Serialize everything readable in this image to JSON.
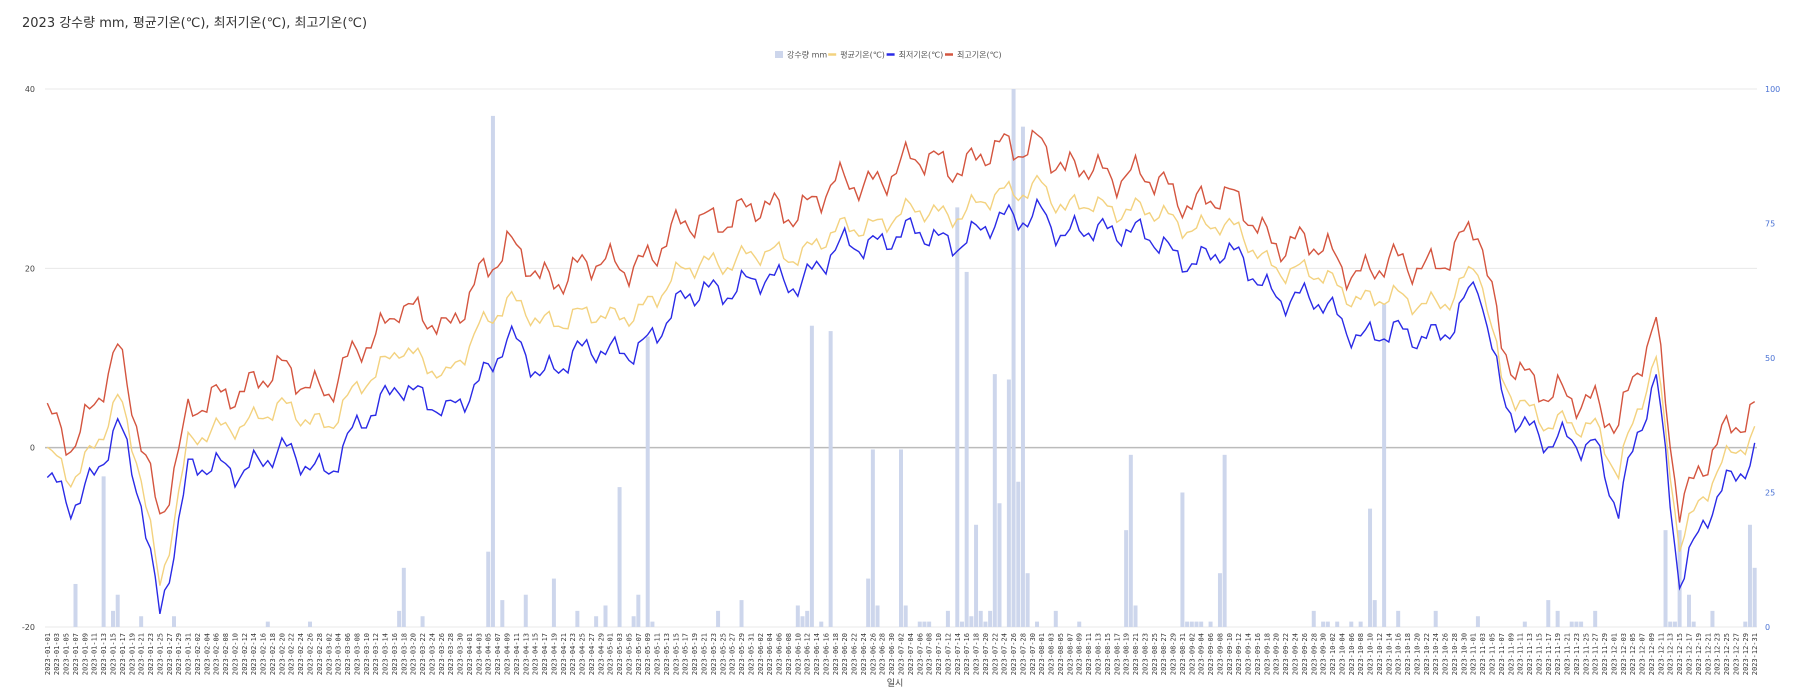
{
  "chart_data": {
    "type": "line",
    "title": "2023 강수량 mm, 평균기온(℃), 최저기온(℃), 최고기온(℃)",
    "xlabel": "일시",
    "ylabel": "",
    "y2label": "",
    "ylim": [
      -20,
      40
    ],
    "y2lim": [
      0,
      100
    ],
    "yticks": [
      -20,
      0,
      20,
      40
    ],
    "y2ticks": [
      0,
      25,
      50,
      75,
      100
    ],
    "grid": true,
    "legend_position": "top-center",
    "start_date": "2023-01-01",
    "end_date": "2023-12-31",
    "x_tick_step_days": 2,
    "legend": [
      {
        "name": "강수량 mm",
        "kind": "bar",
        "color": "#cdd6ec"
      },
      {
        "name": "평균기온(℃)",
        "kind": "line",
        "color": "#f3d27f"
      },
      {
        "name": "최저기온(℃)",
        "kind": "line",
        "color": "#2a2ae6"
      },
      {
        "name": "최고기온(℃)",
        "kind": "line",
        "color": "#d4553f"
      }
    ],
    "temperature_anchors": {
      "doy": [
        0,
        5,
        11,
        15,
        20,
        24,
        30,
        40,
        50,
        60,
        70,
        75,
        85,
        92,
        98,
        105,
        112,
        120,
        130,
        140,
        150,
        160,
        170,
        180,
        190,
        197,
        205,
        212,
        217,
        222,
        230,
        240,
        250,
        260,
        270,
        280,
        290,
        300,
        305,
        310,
        320,
        330,
        335,
        343,
        348,
        354,
        360,
        364
      ],
      "min": [
        -4,
        -6,
        -2,
        2,
        -6,
        -18,
        -3,
        -2,
        -1,
        -2,
        4,
        8,
        3,
        8,
        12,
        8,
        11,
        10,
        13,
        18,
        18,
        19,
        22,
        24,
        23,
        24,
        25,
        27,
        23,
        24,
        25,
        21,
        22,
        18,
        16,
        13,
        12,
        14,
        18,
        6,
        0,
        1,
        -7,
        8,
        -14,
        -8,
        -3,
        0
      ],
      "avg": [
        -1,
        -3,
        1,
        5,
        -3,
        -15,
        0,
        3,
        4,
        3,
        8,
        12,
        7,
        14,
        16,
        14,
        15,
        14,
        17,
        21,
        21,
        22,
        24,
        26,
        26,
        27,
        28,
        30,
        26,
        27,
        27,
        25,
        25,
        21,
        19,
        17,
        16,
        17,
        20,
        8,
        2,
        3,
        -3,
        10,
        -10,
        -5,
        0,
        2
      ],
      "max": [
        3,
        1,
        6,
        10,
        1,
        -7,
        3,
        7,
        8,
        7,
        12,
        17,
        12,
        20,
        22,
        19,
        20,
        20,
        22,
        26,
        26,
        27,
        29,
        31,
        32,
        32,
        33,
        35,
        30,
        31,
        31,
        28,
        28,
        24,
        22,
        20,
        20,
        22,
        24,
        12,
        5,
        6,
        2,
        14,
        -6,
        -2,
        3,
        5
      ]
    },
    "daily_temperature_wobble_amplitude": {
      "min": 2.2,
      "avg": 1.8,
      "max": 2.6
    },
    "precipitation_mm": {
      "doy": [
        6,
        12,
        14,
        15,
        20,
        27,
        47,
        56,
        75,
        76,
        80,
        94,
        95,
        97,
        102,
        108,
        113,
        117,
        119,
        122,
        125,
        126,
        128,
        129,
        143,
        148,
        160,
        161,
        162,
        163,
        165,
        167,
        175,
        176,
        177,
        182,
        183,
        186,
        187,
        188,
        192,
        194,
        195,
        196,
        197,
        198,
        199,
        200,
        201,
        202,
        203,
        205,
        206,
        207,
        208,
        209,
        211,
        215,
        220,
        230,
        231,
        232,
        242,
        243,
        244,
        245,
        246,
        248,
        250,
        251,
        270,
        272,
        273,
        275,
        278,
        280,
        282,
        283,
        285,
        288,
        296,
        305,
        315,
        320,
        322,
        325,
        326,
        327,
        330,
        345,
        346,
        347,
        348,
        350,
        351,
        355,
        362,
        363,
        364
      ],
      "values": [
        8,
        28,
        3,
        6,
        2,
        2,
        1,
        1,
        3,
        11,
        2,
        14,
        95,
        5,
        6,
        9,
        3,
        2,
        4,
        26,
        2,
        6,
        54,
        1,
        3,
        5,
        4,
        2,
        3,
        56,
        1,
        55,
        9,
        33,
        4,
        33,
        4,
        1,
        1,
        1,
        3,
        78,
        1,
        66,
        2,
        19,
        3,
        1,
        3,
        47,
        23,
        46,
        100,
        27,
        93,
        10,
        1,
        3,
        1,
        18,
        32,
        4,
        25,
        1,
        1,
        1,
        1,
        1,
        10,
        32,
        3,
        1,
        1,
        1,
        1,
        1,
        22,
        5,
        60,
        3,
        3,
        2,
        1,
        5,
        3,
        1,
        1,
        1,
        3,
        18,
        1,
        1,
        18,
        6,
        1,
        3,
        1,
        19,
        11
      ]
    }
  }
}
